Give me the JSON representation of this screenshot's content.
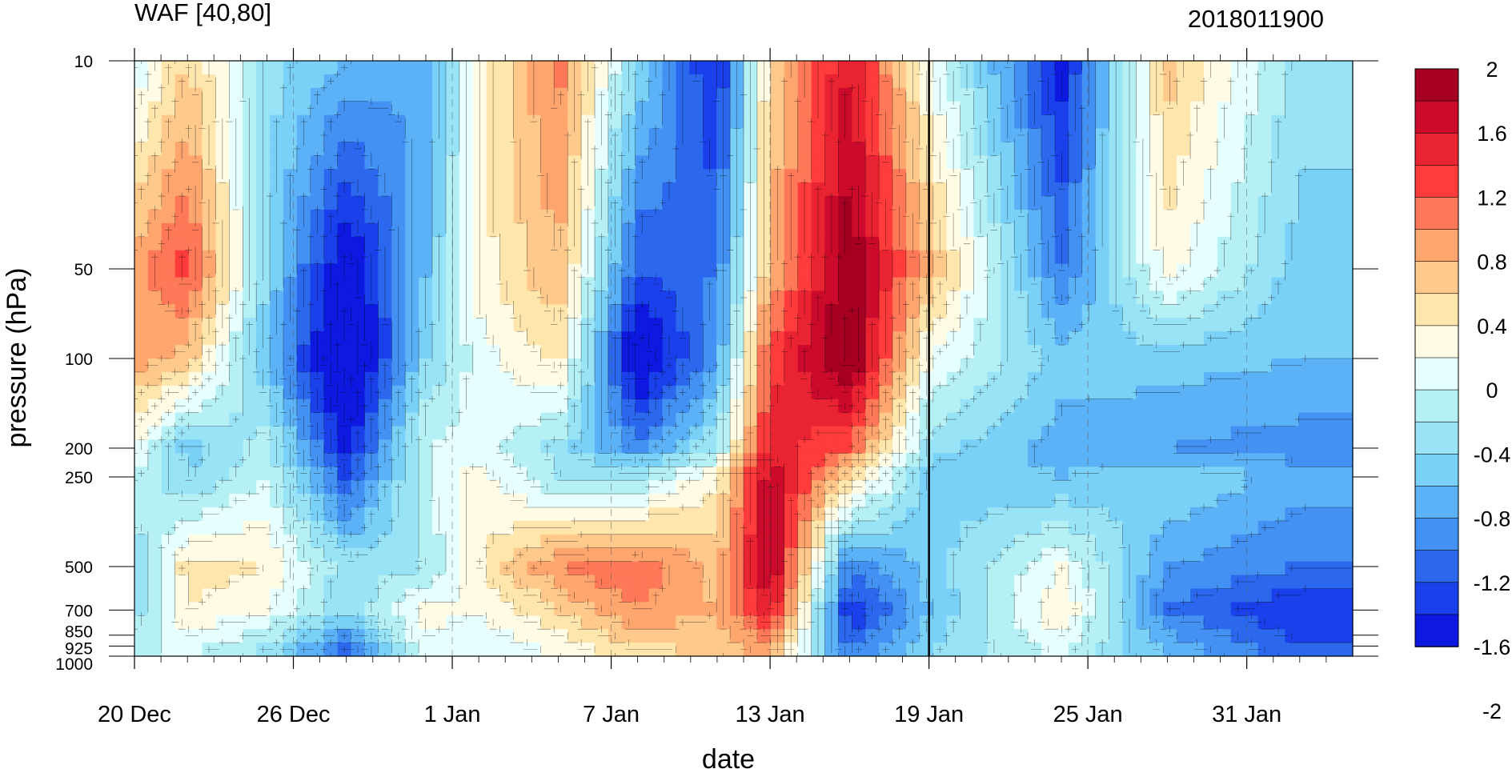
{
  "chart_data": {
    "type": "heatmap",
    "title": "WAF [40,80]",
    "subtitle": "2018011900",
    "xlabel": "date",
    "ylabel": "pressure (hPa)",
    "x_tick_labels": [
      "20 Dec",
      "26 Dec",
      "1 Jan",
      "7 Jan",
      "13 Jan",
      "19 Jan",
      "25 Jan",
      "31 Jan"
    ],
    "y_tick_labels": [
      "10",
      "50",
      "100",
      "200",
      "250",
      "500",
      "700",
      "850",
      "925",
      "1000"
    ],
    "y_scale": "log",
    "xlim": [
      "2017-12-20",
      "2018-02-04"
    ],
    "ylim": [
      1000,
      10
    ],
    "marker_date": "2018-01-19",
    "grid": "dashed verticals at labelled dates",
    "colorbar": {
      "position": "right",
      "labels": [
        "2",
        "1.6",
        "1.2",
        "0.8",
        "0.4",
        "0",
        "-0.4",
        "-0.8",
        "-1.2",
        "-1.6",
        "-2"
      ],
      "colors": [
        "#a50021",
        "#cc0a2b",
        "#ea2332",
        "#ff3b3b",
        "#ff7857",
        "#ffa66e",
        "#ffc98c",
        "#ffe6ad",
        "#fffbe5",
        "#e6ffff",
        "#b5f0f5",
        "#99e3f7",
        "#7ad1f7",
        "#5cb2f7",
        "#4391f2",
        "#2b68ed",
        "#1a40eb",
        "#0d18e0"
      ]
    },
    "series": [
      {
        "values": [
          {
            "date": "2017-12-20",
            "p10": 0.0,
            "p50": 0.9,
            "p100": 0.9,
            "p200": 0.2,
            "p250": 0.0,
            "p500": -0.4,
            "p700": -0.3,
            "p1000": 0.0
          },
          {
            "date": "2017-12-22",
            "p10": 0.6,
            "p50": 1.3,
            "p100": 0.7,
            "p200": -0.5,
            "p250": -0.4,
            "p500": 0.5,
            "p700": 0.4,
            "p1000": 0.0
          },
          {
            "date": "2017-12-25",
            "p10": -0.3,
            "p50": -0.4,
            "p100": -0.6,
            "p200": -0.1,
            "p250": 0.0,
            "p500": 0.4,
            "p700": 0.2,
            "p1000": -0.3
          },
          {
            "date": "2017-12-28",
            "p10": -0.6,
            "p50": -1.7,
            "p100": -2.0,
            "p200": -1.5,
            "p250": -1.2,
            "p500": -0.3,
            "p700": -0.4,
            "p1000": -1.2
          },
          {
            "date": "2017-12-31",
            "p10": -0.8,
            "p50": -0.6,
            "p100": -0.4,
            "p200": 0.0,
            "p250": 0.0,
            "p500": -0.2,
            "p700": 0.3,
            "p1000": 0.1
          },
          {
            "date": "2018-01-02",
            "p10": 0.3,
            "p50": 0.3,
            "p100": 0.1,
            "p200": 0.1,
            "p250": 0.3,
            "p500": 0.4,
            "p700": 0.2,
            "p1000": 0.0
          },
          {
            "date": "2018-01-05",
            "p10": 1.1,
            "p50": 0.8,
            "p100": 0.5,
            "p200": -0.3,
            "p250": -0.2,
            "p500": 1.0,
            "p700": 0.6,
            "p1000": 0.2
          },
          {
            "date": "2018-01-08",
            "p10": -0.4,
            "p50": -1.2,
            "p100": -1.8,
            "p200": -0.9,
            "p250": -0.2,
            "p500": 1.2,
            "p700": 1.0,
            "p1000": 0.5
          },
          {
            "date": "2018-01-11",
            "p10": -1.5,
            "p50": -1.0,
            "p100": -0.8,
            "p200": -0.2,
            "p250": 0.4,
            "p500": 0.7,
            "p700": 0.8,
            "p1000": 0.6
          },
          {
            "date": "2018-01-13",
            "p10": 0.6,
            "p50": 0.8,
            "p100": 1.3,
            "p200": 1.5,
            "p250": 1.8,
            "p500": 1.9,
            "p700": 1.6,
            "p1000": 0.8
          },
          {
            "date": "2018-01-16",
            "p10": 1.6,
            "p50": 2.0,
            "p100": 2.1,
            "p200": 1.2,
            "p250": 0.6,
            "p500": -1.0,
            "p700": -1.4,
            "p1000": -1.0
          },
          {
            "date": "2018-01-19",
            "p10": 0.2,
            "p50": 0.8,
            "p100": 0.2,
            "p200": -0.3,
            "p250": -0.5,
            "p500": -0.5,
            "p700": -0.6,
            "p1000": -0.4
          },
          {
            "date": "2018-01-24",
            "p10": -1.5,
            "p50": -1.0,
            "p100": -0.5,
            "p200": -0.7,
            "p250": -0.6,
            "p500": 0.2,
            "p700": 0.4,
            "p1000": 0.0
          },
          {
            "date": "2018-01-28",
            "p10": 0.7,
            "p50": 0.3,
            "p100": -0.5,
            "p200": -0.8,
            "p250": -0.4,
            "p500": -0.8,
            "p700": -1.0,
            "p1000": -0.6
          },
          {
            "date": "2018-02-02",
            "p10": -0.3,
            "p50": -0.5,
            "p100": -0.6,
            "p200": -0.9,
            "p250": -0.7,
            "p500": -1.0,
            "p700": -1.4,
            "p1000": -1.1
          }
        ]
      }
    ]
  }
}
